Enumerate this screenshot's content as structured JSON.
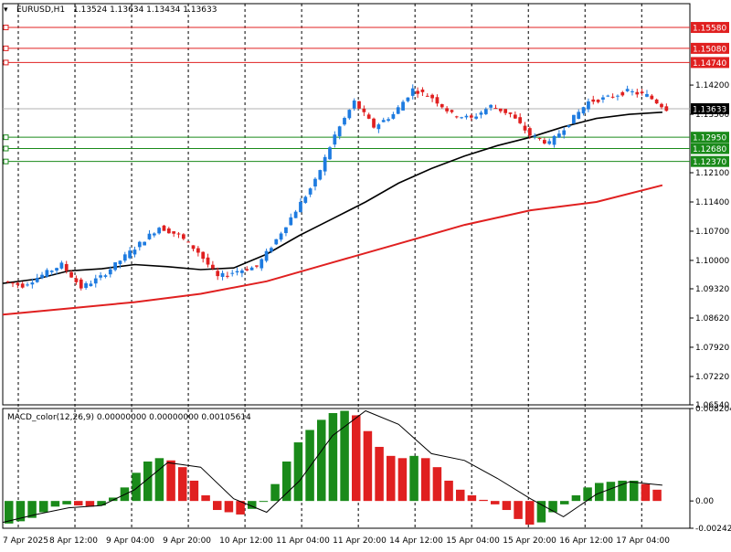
{
  "header": {
    "symbol": "EURUSD,H1",
    "ohlc": "1.13524 1.13634 1.13434 1.13633"
  },
  "indicator": {
    "label": "MACD_color(12,26,9) 0.00000000 0.00000000 0.00105614",
    "ticks": [
      "0.008204",
      "0.00",
      "-0.002420"
    ]
  },
  "current_price_label": "1.13633",
  "x_tick_labels": [
    "7 Apr 2025",
    "8 Apr 12:00",
    "9 Apr 04:00",
    "9 Apr 20:00",
    "10 Apr 12:00",
    "11 Apr 04:00",
    "11 Apr 20:00",
    "14 Apr 12:00",
    "15 Apr 04:00",
    "15 Apr 20:00",
    "16 Apr 12:00",
    "17 Apr 04:00"
  ],
  "colors": {
    "bull": "#1e7be0",
    "bear": "#e02020",
    "ma_fast": "#000000",
    "ma_slow": "#e02020",
    "resistance": "#e02020",
    "support": "#1a8a1a",
    "hist_up": "#1a8a1a",
    "hist_down": "#e02020"
  },
  "chart_data": [
    {
      "type": "candlestick",
      "y_ticks": [
        "1.14200",
        "1.13500",
        "1.12100",
        "1.11400",
        "1.10700",
        "1.10000",
        "1.09320",
        "1.08620",
        "1.07920",
        "1.07220",
        "1.06540"
      ],
      "ylim": [
        1.0654,
        1.1615
      ],
      "resistance_levels": [
        {
          "value": 1.1558,
          "label": "1.15580"
        },
        {
          "value": 1.1508,
          "label": "1.15080"
        },
        {
          "value": 1.1474,
          "label": "1.14740"
        }
      ],
      "support_levels": [
        {
          "value": 1.1295,
          "label": "1.12950"
        },
        {
          "value": 1.1268,
          "label": "1.12680"
        },
        {
          "value": 1.1237,
          "label": "1.12370"
        }
      ],
      "current_price": 1.13633,
      "anchors": [
        {
          "o": 1.095,
          "c": 1.094,
          "w": [
            1.096,
            1.092
          ]
        },
        {
          "o": 1.094,
          "c": 1.0965,
          "w": [
            1.0985,
            1.092
          ]
        },
        {
          "o": 1.0965,
          "c": 1.099,
          "w": [
            1.1005,
            1.0955
          ]
        },
        {
          "o": 1.099,
          "c": 1.0935,
          "w": [
            1.1,
            1.092
          ]
        },
        {
          "o": 1.0935,
          "c": 1.096,
          "w": [
            1.0975,
            1.089
          ]
        },
        {
          "o": 1.096,
          "c": 1.1,
          "w": [
            1.1015,
            1.095
          ]
        },
        {
          "o": 1.1,
          "c": 1.104,
          "w": [
            1.1065,
            1.099
          ]
        },
        {
          "o": 1.104,
          "c": 1.108,
          "w": [
            1.1095,
            1.102
          ]
        },
        {
          "o": 1.108,
          "c": 1.106,
          "w": [
            1.111,
            1.104
          ]
        },
        {
          "o": 1.106,
          "c": 1.102,
          "w": [
            1.1075,
            1.1
          ]
        },
        {
          "o": 1.102,
          "c": 1.096,
          "w": [
            1.103,
            1.094
          ]
        },
        {
          "o": 1.096,
          "c": 1.0975,
          "w": [
            1.099,
            1.093
          ]
        },
        {
          "o": 1.0975,
          "c": 1.0985,
          "w": [
            1.1,
            1.096
          ]
        },
        {
          "o": 1.0985,
          "c": 1.105,
          "w": [
            1.1065,
            1.0975
          ]
        },
        {
          "o": 1.105,
          "c": 1.112,
          "w": [
            1.114,
            1.104
          ]
        },
        {
          "o": 1.112,
          "c": 1.119,
          "w": [
            1.12,
            1.11
          ]
        },
        {
          "o": 1.119,
          "c": 1.13,
          "w": [
            1.132,
            1.117
          ]
        },
        {
          "o": 1.13,
          "c": 1.138,
          "w": [
            1.147,
            1.125
          ]
        },
        {
          "o": 1.138,
          "c": 1.132,
          "w": [
            1.14,
            1.129
          ]
        },
        {
          "o": 1.132,
          "c": 1.135,
          "w": [
            1.137,
            1.13
          ]
        },
        {
          "o": 1.135,
          "c": 1.141,
          "w": [
            1.143,
            1.133
          ]
        },
        {
          "o": 1.141,
          "c": 1.139,
          "w": [
            1.143,
            1.137
          ]
        },
        {
          "o": 1.139,
          "c": 1.135,
          "w": [
            1.14,
            1.13
          ]
        },
        {
          "o": 1.135,
          "c": 1.134,
          "w": [
            1.137,
            1.132
          ]
        },
        {
          "o": 1.134,
          "c": 1.137,
          "w": [
            1.138,
            1.133
          ]
        },
        {
          "o": 1.137,
          "c": 1.135,
          "w": [
            1.139,
            1.133
          ]
        },
        {
          "o": 1.135,
          "c": 1.13,
          "w": [
            1.136,
            1.129
          ]
        },
        {
          "o": 1.13,
          "c": 1.128,
          "w": [
            1.131,
            1.127
          ]
        },
        {
          "o": 1.128,
          "c": 1.133,
          "w": [
            1.134,
            1.127
          ]
        },
        {
          "o": 1.133,
          "c": 1.138,
          "w": [
            1.14,
            1.132
          ]
        },
        {
          "o": 1.138,
          "c": 1.139,
          "w": [
            1.14,
            1.136
          ]
        },
        {
          "o": 1.139,
          "c": 1.1405,
          "w": [
            1.142,
            1.138
          ]
        },
        {
          "o": 1.1405,
          "c": 1.1395,
          "w": [
            1.142,
            1.137
          ]
        },
        {
          "o": 1.1395,
          "c": 1.1363,
          "w": [
            1.1405,
            1.135
          ]
        }
      ],
      "ma_fast": [
        [
          0,
          1.0945
        ],
        [
          0.05,
          1.0955
        ],
        [
          0.1,
          1.0975
        ],
        [
          0.15,
          1.098
        ],
        [
          0.2,
          1.099
        ],
        [
          0.25,
          1.0985
        ],
        [
          0.3,
          1.0978
        ],
        [
          0.35,
          1.0982
        ],
        [
          0.4,
          1.1015
        ],
        [
          0.45,
          1.106
        ],
        [
          0.5,
          1.11
        ],
        [
          0.55,
          1.114
        ],
        [
          0.6,
          1.1185
        ],
        [
          0.65,
          1.122
        ],
        [
          0.7,
          1.125
        ],
        [
          0.75,
          1.1275
        ],
        [
          0.8,
          1.1295
        ],
        [
          0.85,
          1.132
        ],
        [
          0.9,
          1.134
        ],
        [
          0.95,
          1.135
        ],
        [
          1,
          1.1355
        ]
      ],
      "ma_slow": [
        [
          0,
          1.087
        ],
        [
          0.1,
          1.0885
        ],
        [
          0.2,
          1.09
        ],
        [
          0.3,
          1.092
        ],
        [
          0.4,
          1.095
        ],
        [
          0.5,
          1.0995
        ],
        [
          0.6,
          1.104
        ],
        [
          0.7,
          1.1085
        ],
        [
          0.8,
          1.112
        ],
        [
          0.9,
          1.114
        ],
        [
          1,
          1.118
        ]
      ]
    },
    {
      "type": "bar",
      "ylim": [
        -0.00242,
        0.008204
      ],
      "histogram": [
        -0.002,
        -0.0018,
        -0.0015,
        -0.001,
        -0.0005,
        -0.0003,
        -0.0004,
        -0.0005,
        -0.0004,
        0.0003,
        0.0012,
        0.0025,
        0.0035,
        0.0038,
        0.0036,
        0.003,
        0.0018,
        0.0005,
        -0.0008,
        -0.001,
        -0.0012,
        -0.0007,
        0.0,
        0.0015,
        0.0035,
        0.0052,
        0.0063,
        0.0072,
        0.0078,
        0.008,
        0.0076,
        0.0062,
        0.0048,
        0.004,
        0.0038,
        0.004,
        0.0038,
        0.003,
        0.0018,
        0.001,
        0.0005,
        0.0001,
        -0.0003,
        -0.0008,
        -0.0016,
        -0.0021,
        -0.0019,
        -0.001,
        -0.0003,
        0.0005,
        0.0012,
        0.0016,
        0.0017,
        0.0018,
        0.0018,
        0.0015,
        0.001
      ],
      "signal": [
        [
          0,
          -0.0019
        ],
        [
          0.05,
          -0.0012
        ],
        [
          0.1,
          -0.0006
        ],
        [
          0.15,
          -0.0004
        ],
        [
          0.2,
          0.001
        ],
        [
          0.25,
          0.0034
        ],
        [
          0.3,
          0.003
        ],
        [
          0.35,
          0.0002
        ],
        [
          0.4,
          -0.001
        ],
        [
          0.45,
          0.0018
        ],
        [
          0.5,
          0.0058
        ],
        [
          0.55,
          0.008
        ],
        [
          0.6,
          0.0068
        ],
        [
          0.65,
          0.0042
        ],
        [
          0.7,
          0.0036
        ],
        [
          0.75,
          0.002
        ],
        [
          0.8,
          0.0002
        ],
        [
          0.85,
          -0.0014
        ],
        [
          0.9,
          0.0006
        ],
        [
          0.95,
          0.0017
        ],
        [
          1,
          0.0014
        ]
      ]
    }
  ]
}
